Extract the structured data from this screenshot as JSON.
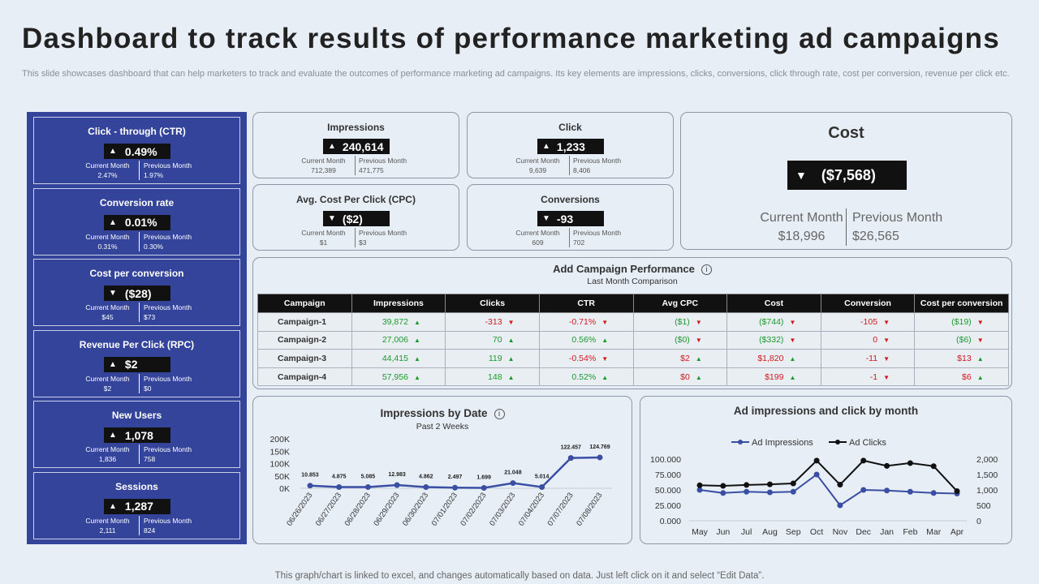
{
  "title": "Dashboard to track results of performance marketing ad campaigns",
  "subtitle": "This slide showcases dashboard that can help marketers to track and evaluate the outcomes of performance marketing ad campaigns. Its key elements are impressions, clicks, conversions, click through rate, cost per conversion, revenue per click etc.",
  "footer": "This graph/chart is linked to excel, and changes automatically based on data. Just left click on it and select “Edit Data”.",
  "labels": {
    "current_month": "Current Month",
    "previous_month": "Previous Month"
  },
  "kpis": [
    {
      "title": "Click - through (CTR)",
      "arrow": "▲",
      "value": "0.49%",
      "current": "2.47%",
      "previous": "1.97%"
    },
    {
      "title": "Conversion rate",
      "arrow": "▲",
      "value": "0.01%",
      "current": "0.31%",
      "previous": "0.30%"
    },
    {
      "title": "Cost per conversion",
      "arrow": "▼",
      "value": "($28)",
      "current": "$45",
      "previous": "$73"
    },
    {
      "title": "Revenue Per Click (RPC)",
      "arrow": "▲",
      "value": "$2",
      "current": "$2",
      "previous": "$0"
    },
    {
      "title": "New Users",
      "arrow": "▲",
      "value": "1,078",
      "current": "1,836",
      "previous": "758"
    },
    {
      "title": "Sessions",
      "arrow": "▲",
      "value": "1,287",
      "current": "2,111",
      "previous": "824"
    }
  ],
  "metrics": {
    "impressions": {
      "title": "Impressions",
      "arrow": "▲",
      "value": "240,614",
      "current": "712,389",
      "previous": "471,775"
    },
    "click": {
      "title": "Click",
      "arrow": "▲",
      "value": "1,233",
      "current": "9,639",
      "previous": "8,406"
    },
    "cpc": {
      "title": "Avg. Cost Per Click (CPC)",
      "arrow": "▼",
      "value": "($2)",
      "current": "$1",
      "previous": "$3"
    },
    "conversions": {
      "title": "Conversions",
      "arrow": "▼",
      "value": "-93",
      "current": "609",
      "previous": "702"
    }
  },
  "cost": {
    "title": "Cost",
    "arrow": "▼",
    "value": "($7,568)",
    "current": "$18,996",
    "previous": "$26,565"
  },
  "campaign_table": {
    "title": "Add Campaign Performance",
    "subtitle": "Last Month Comparison",
    "headers": [
      "Campaign",
      "Impressions",
      "Clicks",
      "CTR",
      "Avg CPC",
      "Cost",
      "Conversion",
      "Cost per conversion"
    ],
    "rows": [
      {
        "name": "Campaign-1",
        "cells": [
          {
            "v": "39,872",
            "t": "up",
            "c": "g"
          },
          {
            "v": "-313",
            "t": "down",
            "c": "r"
          },
          {
            "v": "-0.71%",
            "t": "down",
            "c": "r"
          },
          {
            "v": "($1)",
            "t": "down",
            "c": "g"
          },
          {
            "v": "($744)",
            "t": "down",
            "c": "g"
          },
          {
            "v": "-105",
            "t": "down",
            "c": "r"
          },
          {
            "v": "($19)",
            "t": "down",
            "c": "g"
          }
        ]
      },
      {
        "name": "Campaign-2",
        "cells": [
          {
            "v": "27,006",
            "t": "up",
            "c": "g"
          },
          {
            "v": "70",
            "t": "up",
            "c": "g"
          },
          {
            "v": "0.56%",
            "t": "up",
            "c": "g"
          },
          {
            "v": "($0)",
            "t": "down",
            "c": "g"
          },
          {
            "v": "($332)",
            "t": "down",
            "c": "g"
          },
          {
            "v": "0",
            "t": "down",
            "c": "r"
          },
          {
            "v": "($6)",
            "t": "down",
            "c": "g"
          }
        ]
      },
      {
        "name": "Campaign-3",
        "cells": [
          {
            "v": "44,415",
            "t": "up",
            "c": "g"
          },
          {
            "v": "119",
            "t": "up",
            "c": "g"
          },
          {
            "v": "-0.54%",
            "t": "down",
            "c": "r"
          },
          {
            "v": "$2",
            "t": "up",
            "c": "r"
          },
          {
            "v": "$1,820",
            "t": "up",
            "c": "r"
          },
          {
            "v": "-11",
            "t": "down",
            "c": "r"
          },
          {
            "v": "$13",
            "t": "up",
            "c": "r"
          }
        ]
      },
      {
        "name": "Campaign-4",
        "cells": [
          {
            "v": "57,956",
            "t": "up",
            "c": "g"
          },
          {
            "v": "148",
            "t": "up",
            "c": "g"
          },
          {
            "v": "0.52%",
            "t": "up",
            "c": "g"
          },
          {
            "v": "$0",
            "t": "up",
            "c": "r"
          },
          {
            "v": "$199",
            "t": "up",
            "c": "r"
          },
          {
            "v": "-1",
            "t": "down",
            "c": "r"
          },
          {
            "v": "$6",
            "t": "up",
            "c": "r"
          }
        ]
      }
    ]
  },
  "chart_data": [
    {
      "type": "line",
      "title": "Impressions by Date",
      "subtitle": "Past 2 Weeks",
      "x": [
        "06/26/2023",
        "06/27/2023",
        "06/28/2023",
        "06/29/2023",
        "06/30/2023",
        "07/01/2023",
        "07/02/2023",
        "07/03/2023",
        "07/04/2023",
        "07/07/2023",
        "07/08/2023"
      ],
      "values": [
        10853,
        4875,
        5085,
        12983,
        4862,
        2497,
        1699,
        21048,
        5014,
        122457,
        124769
      ],
      "data_labels": [
        "10.853",
        "4.875",
        "5.085",
        "12.983",
        "4.862",
        "2.497",
        "1.699",
        "21.048",
        "5.014",
        "122.457",
        "124.769"
      ],
      "ylim": [
        0,
        200000
      ],
      "yticks": [
        "200K",
        "150K",
        "100K",
        "50K",
        "0K"
      ],
      "color": "#3a4fa3"
    },
    {
      "type": "line",
      "title": "Ad impressions and click by month",
      "categories": [
        "May",
        "Jun",
        "Jul",
        "Aug",
        "Sep",
        "Oct",
        "Nov",
        "Dec",
        "Jan",
        "Feb",
        "Mar",
        "Apr"
      ],
      "legend": "top",
      "series": [
        {
          "name": "Ad Impressions",
          "axis": "left",
          "color": "#3a4fa3",
          "values": [
            50000,
            45000,
            47000,
            46000,
            47000,
            75000,
            25000,
            50000,
            49000,
            47000,
            45000,
            44000
          ]
        },
        {
          "name": "Ad Clicks",
          "axis": "right",
          "color": "#111111",
          "values": [
            1150,
            1130,
            1160,
            1180,
            1210,
            1950,
            1170,
            1950,
            1780,
            1870,
            1770,
            960
          ]
        }
      ],
      "ylim_left": [
        0,
        100000
      ],
      "yticks_left": [
        "100.000",
        "75.000",
        "50.000",
        "25.000",
        "0.000"
      ],
      "ylim_right": [
        0,
        2000
      ],
      "yticks_right": [
        "2,000",
        "1,500",
        "1,000",
        "500",
        "0"
      ]
    }
  ]
}
